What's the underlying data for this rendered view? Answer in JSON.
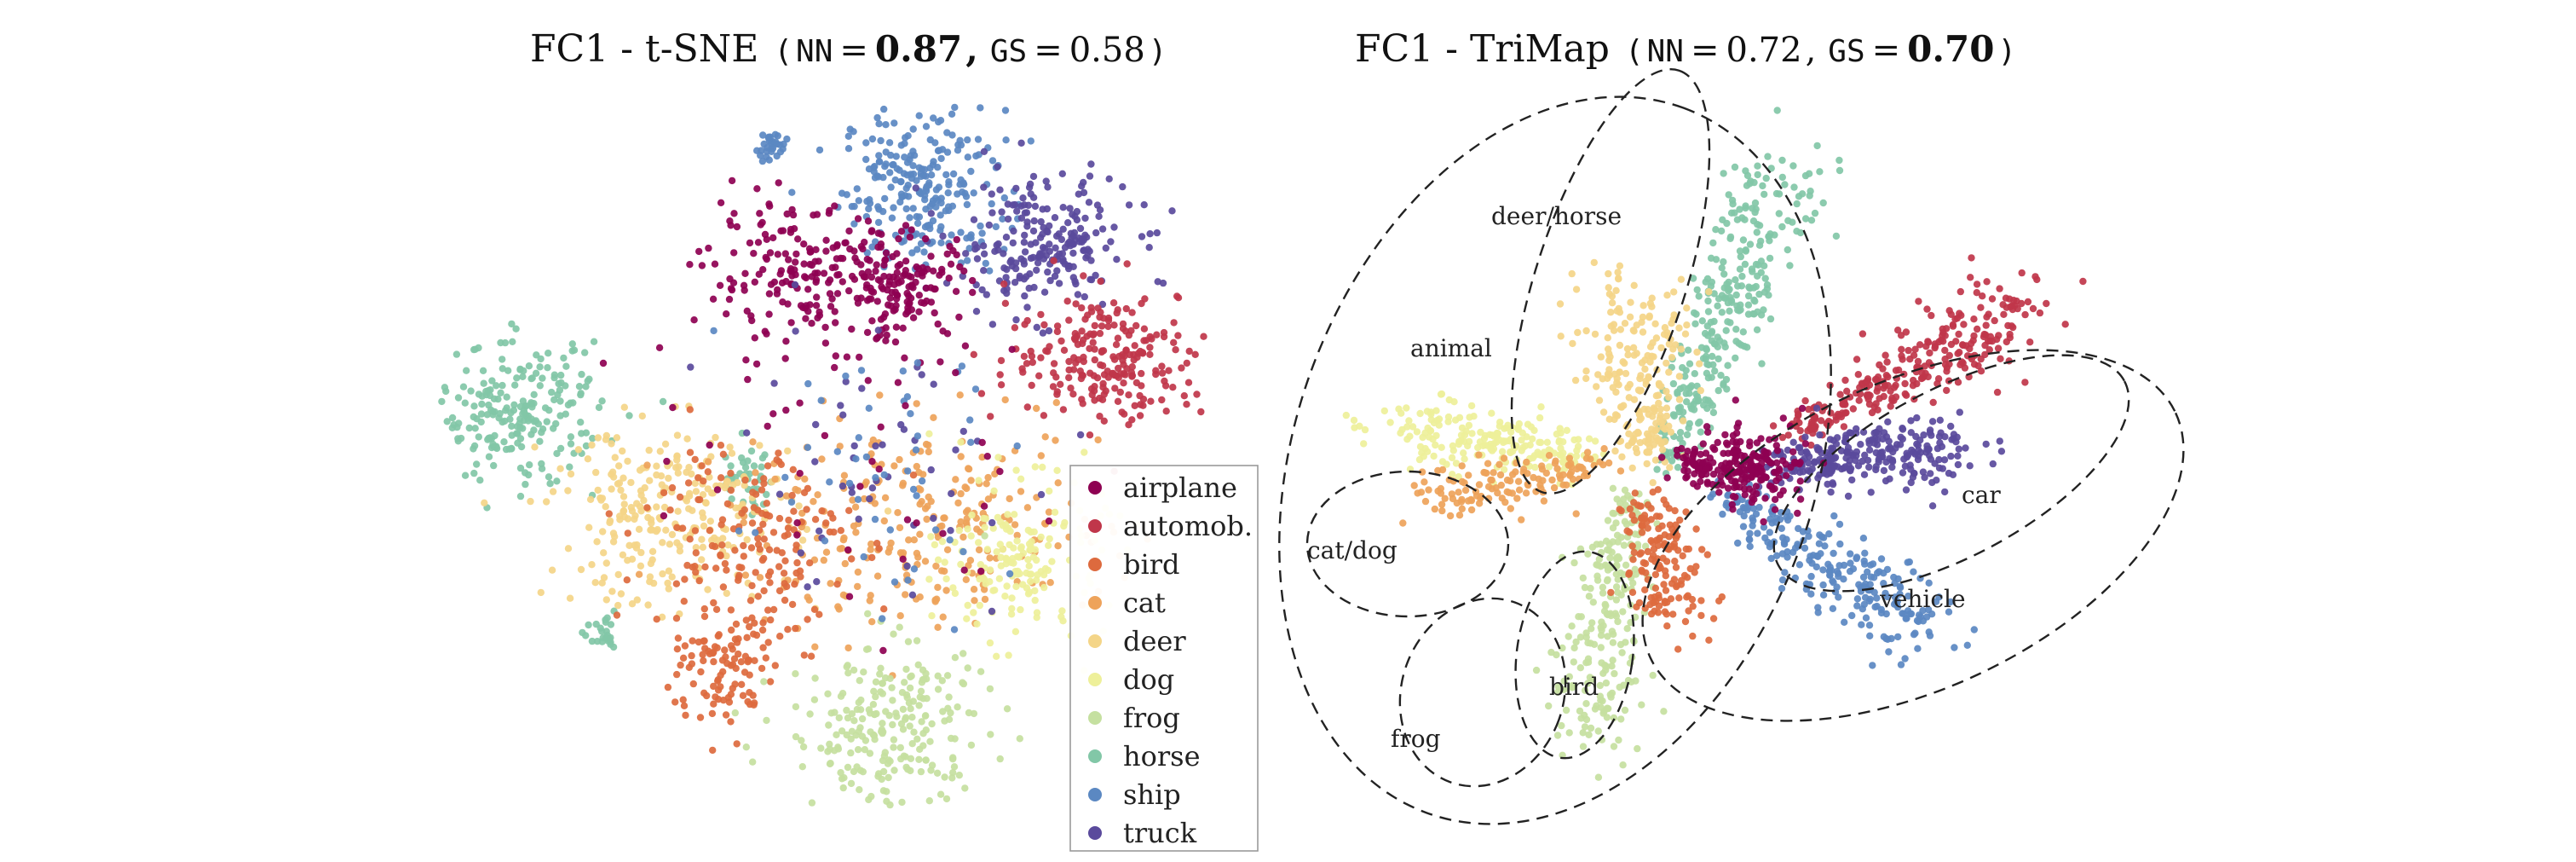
{
  "palette": {
    "airplane": "#8e0152",
    "automob.": "#c0364a",
    "bird": "#dd6a3e",
    "cat": "#eea35a",
    "deer": "#f4d588",
    "dog": "#eef09a",
    "frog": "#c5e0a0",
    "horse": "#82c7a7",
    "ship": "#5b88c2",
    "truck": "#5a4a9c"
  },
  "legend": {
    "entries": [
      "airplane",
      "automob.",
      "bird",
      "cat",
      "deer",
      "dog",
      "frog",
      "horse",
      "ship",
      "truck"
    ]
  },
  "chart_data": [
    {
      "type": "scatter",
      "title_main": "FC1 - t-SNE",
      "title_metrics": {
        "open": "(",
        "nn_label": "NN",
        "eq": "=",
        "nn_value": "0.87",
        "sep": ",",
        "gs_label": "GS",
        "gs_value": "0.58",
        "close": ")"
      },
      "bold_metric": "NN",
      "xlabel": "",
      "ylabel": "",
      "axes": "off",
      "grid": false,
      "legend_position": "lower-right",
      "clusters": [
        {
          "class": "ship",
          "center": [
            0.35,
            0.88
          ],
          "spread": [
            0.08,
            0.07
          ],
          "count": 240
        },
        {
          "class": "ship",
          "center": [
            0.05,
            0.95
          ],
          "spread": [
            0.015,
            0.015
          ],
          "count": 30
        },
        {
          "class": "truck",
          "center": [
            0.58,
            0.78
          ],
          "spread": [
            0.09,
            0.06
          ],
          "count": 220
        },
        {
          "class": "airplane",
          "center": [
            0.12,
            0.72
          ],
          "spread": [
            0.1,
            0.06
          ],
          "count": 200
        },
        {
          "class": "airplane",
          "center": [
            0.32,
            0.7
          ],
          "spread": [
            0.06,
            0.05
          ],
          "count": 120
        },
        {
          "class": "automob.",
          "center": [
            0.72,
            0.58
          ],
          "spread": [
            0.1,
            0.06
          ],
          "count": 230
        },
        {
          "class": "horse",
          "center": [
            -0.45,
            0.48
          ],
          "spread": [
            0.08,
            0.06
          ],
          "count": 220
        },
        {
          "class": "horse",
          "center": [
            0.0,
            0.36
          ],
          "spread": [
            0.03,
            0.03
          ],
          "count": 40
        },
        {
          "class": "horse",
          "center": [
            -0.28,
            0.08
          ],
          "spread": [
            0.015,
            0.015
          ],
          "count": 25
        },
        {
          "class": "deer",
          "center": [
            -0.15,
            0.3
          ],
          "spread": [
            0.12,
            0.08
          ],
          "count": 260
        },
        {
          "class": "cat",
          "center": [
            0.35,
            0.28
          ],
          "spread": [
            0.18,
            0.09
          ],
          "count": 260
        },
        {
          "class": "bird",
          "center": [
            0.0,
            0.25
          ],
          "spread": [
            0.1,
            0.1
          ],
          "count": 180
        },
        {
          "class": "bird",
          "center": [
            -0.05,
            0.02
          ],
          "spread": [
            0.05,
            0.05
          ],
          "count": 90
        },
        {
          "class": "dog",
          "center": [
            0.55,
            0.22
          ],
          "spread": [
            0.08,
            0.07
          ],
          "count": 170
        },
        {
          "class": "frog",
          "center": [
            0.28,
            -0.08
          ],
          "spread": [
            0.1,
            0.08
          ],
          "count": 240
        },
        {
          "class": "truck",
          "center": [
            0.25,
            0.4
          ],
          "spread": [
            0.15,
            0.12
          ],
          "count": 50
        },
        {
          "class": "ship",
          "center": [
            0.25,
            0.35
          ],
          "spread": [
            0.15,
            0.12
          ],
          "count": 50
        },
        {
          "class": "airplane",
          "center": [
            0.2,
            0.4
          ],
          "spread": [
            0.2,
            0.15
          ],
          "count": 40
        }
      ]
    },
    {
      "type": "scatter",
      "title_main": "FC1 - TriMap",
      "title_metrics": {
        "open": "(",
        "nn_label": "NN",
        "eq": "=",
        "nn_value": "0.72",
        "sep": ",",
        "gs_label": "GS",
        "gs_value": "0.70",
        "close": ")"
      },
      "bold_metric": "GS",
      "xlabel": "",
      "ylabel": "",
      "axes": "off",
      "grid": false,
      "annotations": [
        "deer/horse",
        "animal",
        "car",
        "cat/dog",
        "vehicle",
        "bird",
        "frog"
      ],
      "arms": [
        {
          "class": "horse",
          "from": [
            0.05,
            0.05
          ],
          "to": [
            0.35,
            1.0
          ],
          "width": 0.05,
          "count": 300
        },
        {
          "class": "deer",
          "from": [
            0.0,
            0.05
          ],
          "to": [
            -0.05,
            0.55
          ],
          "width": 0.06,
          "count": 220
        },
        {
          "class": "automob.",
          "from": [
            0.35,
            0.15
          ],
          "to": [
            0.95,
            0.55
          ],
          "width": 0.05,
          "count": 280
        },
        {
          "class": "truck",
          "from": [
            0.3,
            0.05
          ],
          "to": [
            0.75,
            0.1
          ],
          "width": 0.045,
          "count": 260
        },
        {
          "class": "ship",
          "from": [
            0.2,
            -0.05
          ],
          "to": [
            0.7,
            -0.45
          ],
          "width": 0.05,
          "count": 240
        },
        {
          "class": "airplane",
          "from": [
            0.1,
            0.05
          ],
          "to": [
            0.35,
            0.05
          ],
          "width": 0.05,
          "count": 230
        },
        {
          "class": "dog",
          "from": [
            -0.15,
            0.08
          ],
          "to": [
            -0.65,
            0.18
          ],
          "width": 0.05,
          "count": 200
        },
        {
          "class": "cat",
          "from": [
            -0.1,
            0.05
          ],
          "to": [
            -0.55,
            -0.05
          ],
          "width": 0.04,
          "count": 130
        },
        {
          "class": "frog",
          "from": [
            -0.05,
            -0.05
          ],
          "to": [
            -0.15,
            -0.8
          ],
          "width": 0.05,
          "count": 230
        },
        {
          "class": "bird",
          "from": [
            0.0,
            -0.05
          ],
          "to": [
            0.08,
            -0.42
          ],
          "width": 0.05,
          "count": 150
        }
      ],
      "ellipses": [
        {
          "label": "deer/horse",
          "center": [
            0.15,
            0.55
          ],
          "radii": [
            0.15,
            0.55
          ],
          "angle_deg": -72
        },
        {
          "label": "animal",
          "center": [
            -0.15,
            0.1
          ],
          "radii": [
            0.35,
            0.95
          ],
          "angle_deg": -80
        },
        {
          "label": "car",
          "center": [
            0.7,
            0.38
          ],
          "radii": [
            0.15,
            0.38
          ],
          "angle_deg": 55
        },
        {
          "label": "vehicle",
          "center": [
            0.55,
            0.15
          ],
          "radii": [
            0.55,
            0.35
          ],
          "angle_deg": 25
        },
        {
          "label": "cat/dog",
          "center": [
            -0.55,
            0.08
          ],
          "radii": [
            0.24,
            0.12
          ],
          "angle_deg": 0
        },
        {
          "label": "bird",
          "center": [
            0.05,
            -0.2
          ],
          "radii": [
            0.14,
            0.26
          ],
          "angle_deg": 0
        },
        {
          "label": "frog",
          "center": [
            -0.15,
            -0.5
          ],
          "radii": [
            0.18,
            0.4
          ],
          "angle_deg": 15
        }
      ]
    }
  ]
}
